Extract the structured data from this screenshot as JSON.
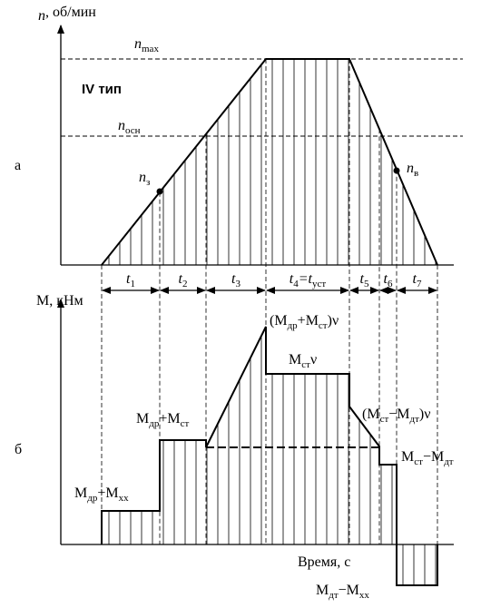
{
  "axes": {
    "top_y_label": [
      "n",
      "",
      ",  об/мин"
    ],
    "bottom_y_label": [
      "M, кНм"
    ],
    "x_label": [
      "Время, с"
    ],
    "panel_a": [
      "а"
    ],
    "panel_b": [
      "б"
    ]
  },
  "type_label": [
    "IV тип"
  ],
  "speed_labels": [
    [
      "n",
      "max"
    ],
    [
      "n",
      "осн"
    ],
    [
      "n",
      "з"
    ],
    [
      "n",
      "в"
    ]
  ],
  "intervals": [
    [
      "t",
      "1"
    ],
    [
      "t",
      "2"
    ],
    [
      "t",
      "3"
    ],
    [
      "t",
      "4",
      "=t",
      "уст"
    ],
    [
      "t",
      "5"
    ],
    [
      "t",
      "6"
    ],
    [
      "t",
      "7"
    ]
  ],
  "torque_labels": [
    [
      "M",
      "др",
      "+M",
      "хх"
    ],
    [
      "M",
      "др",
      "+M",
      "ст"
    ],
    [
      "(M",
      "др",
      "+M",
      "ст",
      ")ν"
    ],
    [
      "M",
      "ст",
      "ν"
    ],
    [
      "(M",
      "ст",
      "−M",
      "дт",
      ")ν"
    ],
    [
      "M",
      "ст",
      "−M",
      "дт"
    ],
    [
      "M",
      "дт",
      "−M",
      "хх"
    ]
  ]
}
